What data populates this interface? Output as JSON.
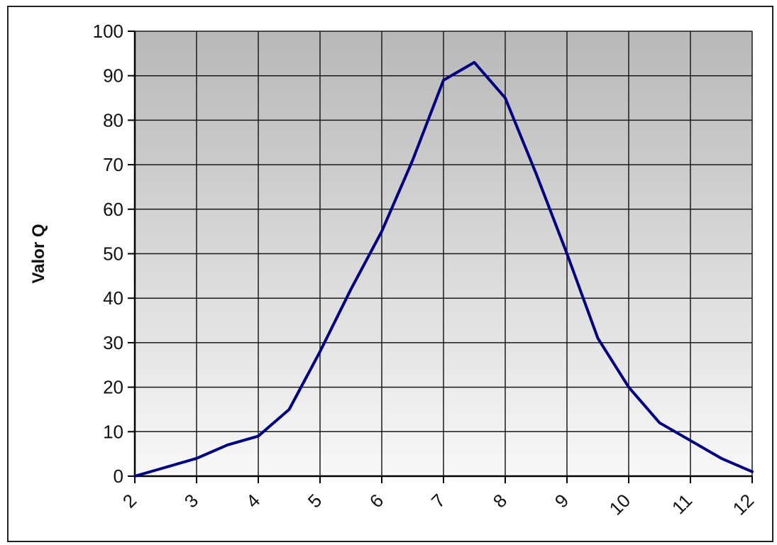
{
  "chart_data": {
    "type": "line",
    "title": "",
    "xlabel": "",
    "ylabel": "Valor Q",
    "xlim": [
      2,
      12
    ],
    "ylim": [
      0,
      100
    ],
    "x_ticks": [
      "2",
      "3",
      "4",
      "5",
      "6",
      "7",
      "8",
      "9",
      "10",
      "11",
      "12"
    ],
    "y_ticks": [
      "0",
      "10",
      "20",
      "30",
      "40",
      "50",
      "60",
      "70",
      "80",
      "90",
      "100"
    ],
    "grid": true,
    "legend": "none",
    "series": [
      {
        "color": "#000080",
        "x": [
          2,
          2.5,
          3,
          3.5,
          4,
          4.5,
          5,
          5.5,
          6,
          6.5,
          7,
          7.5,
          8,
          8.5,
          9,
          9.5,
          10,
          10.5,
          11,
          11.5,
          12
        ],
        "y": [
          0,
          2,
          4,
          7,
          9,
          15,
          28,
          42,
          55,
          71,
          89,
          93,
          85,
          68,
          50,
          31,
          20,
          12,
          8,
          4,
          1
        ]
      }
    ],
    "colors": {
      "plot_top": "#b8b8b8",
      "plot_bottom": "#f8f8f8",
      "grid": "#1a1a1a",
      "line": "#000080"
    }
  }
}
